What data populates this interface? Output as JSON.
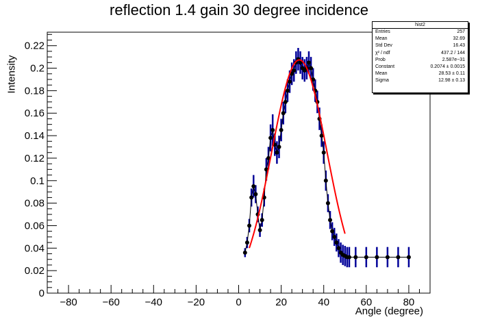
{
  "chart_data": {
    "type": "scatter",
    "title": "reflection 1.4 gain 30 degree incidence",
    "xlabel": "Angle (degree)",
    "ylabel": "Intensity",
    "xlim": [
      -90,
      90
    ],
    "ylim": [
      0,
      0.232
    ],
    "xticks": [
      -80,
      -60,
      -40,
      -20,
      0,
      20,
      40,
      60,
      80
    ],
    "yticks": [
      0,
      0.02,
      0.04,
      0.06,
      0.08,
      0.1,
      0.12,
      0.14,
      0.16,
      0.18,
      0.2,
      0.22
    ],
    "ytick_labels": [
      "0",
      "0.02",
      "0.04",
      "0.06",
      "0.08",
      "0.1",
      "0.12",
      "0.14",
      "0.16",
      "0.18",
      "0.2",
      "0.22"
    ],
    "grid": false,
    "colors": {
      "markers": "#000000",
      "error_bars": "#000099",
      "fit": "#ff0000"
    },
    "series": [
      {
        "kind": "data_with_errors",
        "x": [
          3,
          4,
          5,
          6,
          7,
          8,
          9,
          10,
          11,
          12,
          13,
          14,
          15,
          16,
          17,
          18,
          19,
          20,
          21,
          22,
          23,
          24,
          25,
          26,
          27,
          28,
          29,
          30,
          31,
          32,
          33,
          34,
          35,
          36,
          37,
          38,
          39,
          40,
          41,
          42,
          43,
          44,
          45,
          46,
          47,
          48,
          49,
          50,
          51,
          52,
          55,
          60,
          65,
          70,
          75,
          80
        ],
        "y": [
          0.036,
          0.045,
          0.06,
          0.085,
          0.095,
          0.088,
          0.07,
          0.056,
          0.065,
          0.085,
          0.11,
          0.12,
          0.138,
          0.145,
          0.132,
          0.125,
          0.13,
          0.145,
          0.16,
          0.17,
          0.18,
          0.188,
          0.195,
          0.198,
          0.205,
          0.208,
          0.205,
          0.2,
          0.198,
          0.2,
          0.205,
          0.2,
          0.19,
          0.18,
          0.17,
          0.155,
          0.14,
          0.125,
          0.1,
          0.08,
          0.065,
          0.055,
          0.05,
          0.045,
          0.04,
          0.036,
          0.034,
          0.033,
          0.032,
          0.032,
          0.032,
          0.032,
          0.032,
          0.032,
          0.032,
          0.032
        ],
        "yerr": [
          0.004,
          0.005,
          0.006,
          0.008,
          0.01,
          0.008,
          0.007,
          0.006,
          0.006,
          0.008,
          0.01,
          0.01,
          0.012,
          0.014,
          0.01,
          0.01,
          0.01,
          0.01,
          0.01,
          0.01,
          0.01,
          0.01,
          0.01,
          0.01,
          0.01,
          0.01,
          0.01,
          0.01,
          0.01,
          0.01,
          0.01,
          0.01,
          0.01,
          0.01,
          0.01,
          0.01,
          0.01,
          0.01,
          0.009,
          0.008,
          0.008,
          0.008,
          0.008,
          0.008,
          0.008,
          0.009,
          0.009,
          0.009,
          0.009,
          0.009,
          0.009,
          0.009,
          0.009,
          0.009,
          0.009,
          0.009
        ]
      },
      {
        "kind": "gaussian_fit",
        "x_range": [
          5,
          50
        ],
        "constant": 0.2074,
        "mean": 28.53,
        "sigma": 12.98
      }
    ]
  },
  "stats_box": {
    "title": "hist2",
    "rows": [
      {
        "label": "Entries",
        "value": "257"
      },
      {
        "label": "Mean",
        "value": "32.69"
      },
      {
        "label": "Std Dev",
        "value": "16.43"
      },
      {
        "label": "χ² / ndf",
        "value": "437.2 / 144"
      },
      {
        "label": "Prob",
        "value": "2.587e−31"
      },
      {
        "label": "Constant",
        "value": "0.2074 ± 0.0015"
      },
      {
        "label": "Mean",
        "value": "28.53 ± 0.11"
      },
      {
        "label": "Sigma",
        "value": "12.98 ± 0.13"
      }
    ]
  }
}
